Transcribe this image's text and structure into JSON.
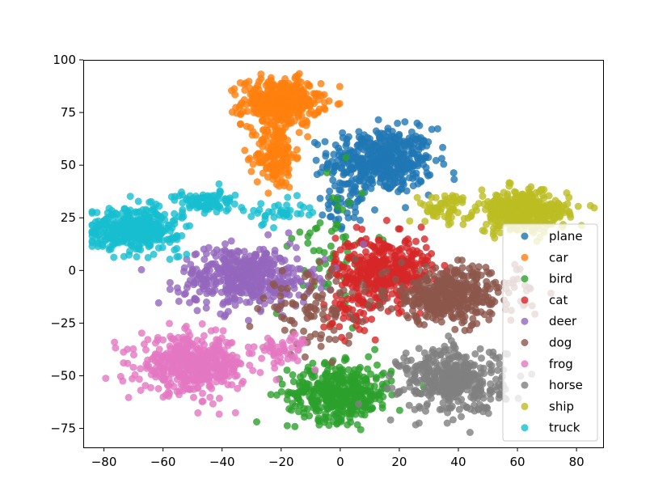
{
  "chart_data": {
    "type": "scatter",
    "title": "",
    "xlabel": "",
    "ylabel": "",
    "xlim": [
      -87,
      89
    ],
    "ylim": [
      -84,
      100
    ],
    "x_ticks": [
      -80,
      -60,
      -40,
      -20,
      0,
      20,
      40,
      60,
      80
    ],
    "y_ticks": [
      -75,
      -50,
      -25,
      0,
      25,
      50,
      75,
      100
    ],
    "x_tick_labels": [
      "−80",
      "−60",
      "−40",
      "−20",
      "0",
      "20",
      "40",
      "60",
      "80"
    ],
    "y_tick_labels": [
      "−75",
      "−50",
      "−25",
      "0",
      "25",
      "50",
      "75",
      "100"
    ],
    "grid": false,
    "legend_position": "right",
    "series": [
      {
        "name": "plane",
        "color": "#1f77b4",
        "clusters": [
          {
            "cx": 14,
            "cy": 52,
            "rx": 16,
            "ry": 14,
            "n": 460
          },
          {
            "cx": 2,
            "cy": 30,
            "rx": 10,
            "ry": 10,
            "n": 40
          }
        ]
      },
      {
        "name": "car",
        "color": "#ff7f0e",
        "clusters": [
          {
            "cx": -20,
            "cy": 80,
            "rx": 12,
            "ry": 10,
            "n": 380
          },
          {
            "cx": -22,
            "cy": 55,
            "rx": 6,
            "ry": 15,
            "n": 160
          }
        ]
      },
      {
        "name": "bird",
        "color": "#2ca02c",
        "clusters": [
          {
            "cx": 0,
            "cy": -58,
            "rx": 16,
            "ry": 12,
            "n": 420
          },
          {
            "cx": -2,
            "cy": 10,
            "rx": 12,
            "ry": 30,
            "n": 60
          }
        ]
      },
      {
        "name": "cat",
        "color": "#d62728",
        "clusters": [
          {
            "cx": 15,
            "cy": 0,
            "rx": 15,
            "ry": 15,
            "n": 380
          },
          {
            "cx": 5,
            "cy": -20,
            "rx": 10,
            "ry": 12,
            "n": 50
          }
        ]
      },
      {
        "name": "deer",
        "color": "#9467bd",
        "clusters": [
          {
            "cx": -32,
            "cy": -3,
            "rx": 20,
            "ry": 13,
            "n": 440
          }
        ]
      },
      {
        "name": "dog",
        "color": "#8c564b",
        "clusters": [
          {
            "cx": 38,
            "cy": -12,
            "rx": 20,
            "ry": 12,
            "n": 400
          },
          {
            "cx": -10,
            "cy": -18,
            "rx": 15,
            "ry": 15,
            "n": 90
          }
        ]
      },
      {
        "name": "frog",
        "color": "#e377c2",
        "clusters": [
          {
            "cx": -50,
            "cy": -45,
            "rx": 16,
            "ry": 12,
            "n": 460
          },
          {
            "cx": -20,
            "cy": -38,
            "rx": 8,
            "ry": 8,
            "n": 50
          }
        ]
      },
      {
        "name": "horse",
        "color": "#7f7f7f",
        "clusters": [
          {
            "cx": 38,
            "cy": -52,
            "rx": 16,
            "ry": 14,
            "n": 400
          }
        ]
      },
      {
        "name": "ship",
        "color": "#bcbd22",
        "clusters": [
          {
            "cx": 62,
            "cy": 28,
            "rx": 14,
            "ry": 9,
            "n": 360
          },
          {
            "cx": 35,
            "cy": 30,
            "rx": 8,
            "ry": 6,
            "n": 60
          }
        ]
      },
      {
        "name": "truck",
        "color": "#17becf",
        "clusters": [
          {
            "cx": -70,
            "cy": 20,
            "rx": 14,
            "ry": 9,
            "n": 380
          },
          {
            "cx": -45,
            "cy": 32,
            "rx": 10,
            "ry": 5,
            "n": 90
          },
          {
            "cx": -22,
            "cy": 28,
            "rx": 10,
            "ry": 5,
            "n": 40
          }
        ]
      }
    ]
  }
}
